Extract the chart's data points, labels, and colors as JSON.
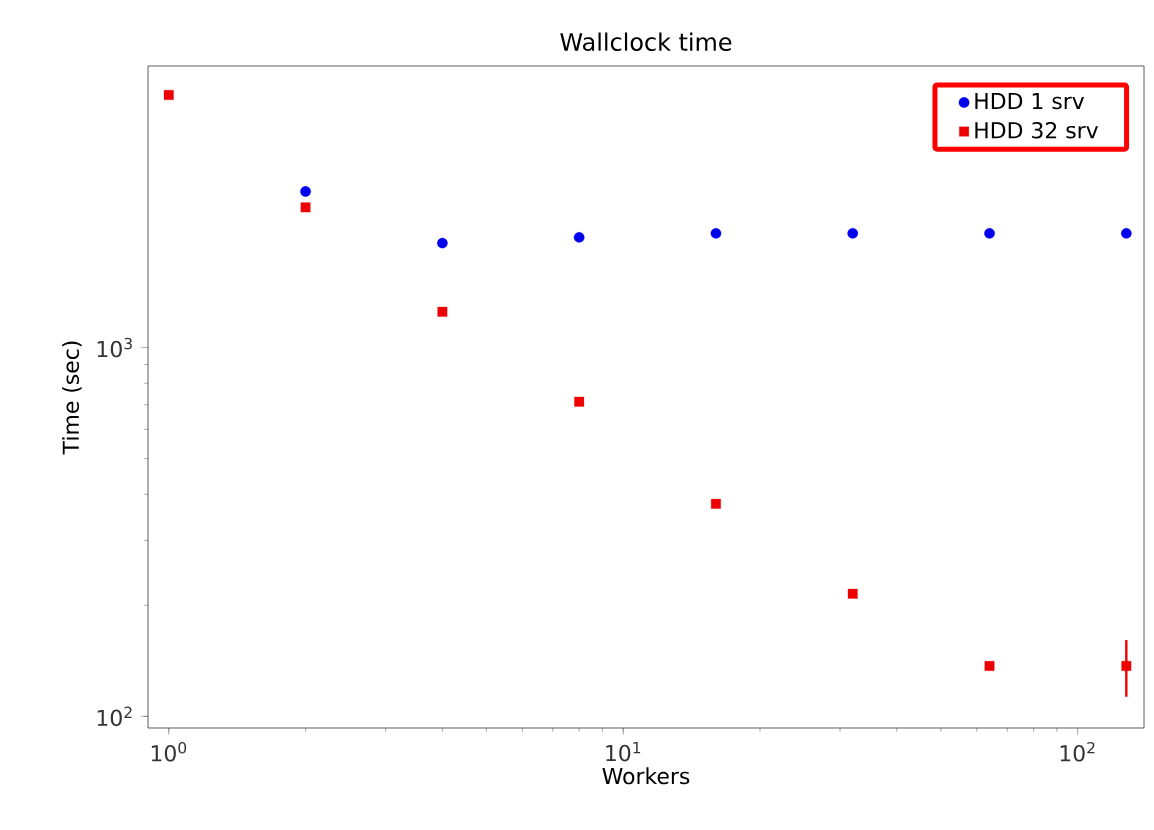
{
  "chart_data": {
    "type": "scatter",
    "title": "Wallclock time",
    "xlabel": "Workers",
    "ylabel": "Time (sec)",
    "x": [
      1,
      2,
      4,
      8,
      16,
      32,
      64,
      128
    ],
    "series": [
      {
        "name": "HDD 1 srv",
        "color": "#0000ee",
        "marker": "circle",
        "values": [
          null,
          2650,
          1920,
          1990,
          2040,
          2040,
          2040,
          2040
        ]
      },
      {
        "name": "HDD 32 srv",
        "color": "#ee0000",
        "marker": "square",
        "values": [
          4840,
          2400,
          1250,
          713,
          377,
          215,
          137,
          137
        ],
        "errors": [
          null,
          null,
          null,
          null,
          null,
          null,
          null,
          24
        ]
      }
    ],
    "log": "xy",
    "xlim": [
      0.9,
      140
    ],
    "ylim": [
      93,
      5800
    ],
    "xticks": [
      {
        "value": 1,
        "label": "10$^{0}$"
      },
      {
        "value": 10,
        "label": "10$^{1}$"
      },
      {
        "value": 100,
        "label": "10$^{2}$"
      }
    ],
    "yticks": [
      {
        "value": 100,
        "label": "10$^{2}$"
      },
      {
        "value": 1000,
        "label": "10$^{3}$"
      }
    ],
    "legend": "top right",
    "grid": false
  }
}
